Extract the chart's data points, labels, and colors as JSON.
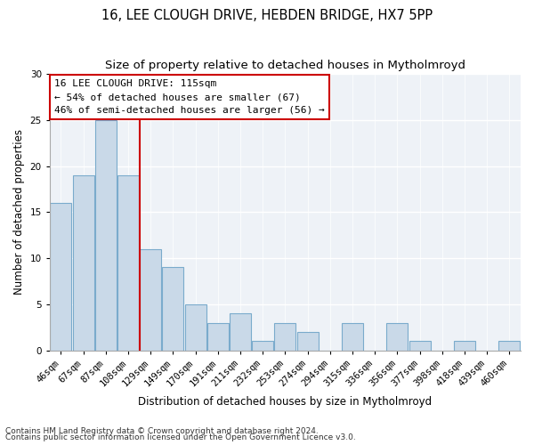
{
  "title": "16, LEE CLOUGH DRIVE, HEBDEN BRIDGE, HX7 5PP",
  "subtitle": "Size of property relative to detached houses in Mytholmroyd",
  "xlabel": "Distribution of detached houses by size in Mytholmroyd",
  "ylabel": "Number of detached properties",
  "footnote1": "Contains HM Land Registry data © Crown copyright and database right 2024.",
  "footnote2": "Contains public sector information licensed under the Open Government Licence v3.0.",
  "bin_labels": [
    "46sqm",
    "67sqm",
    "87sqm",
    "108sqm",
    "129sqm",
    "149sqm",
    "170sqm",
    "191sqm",
    "211sqm",
    "232sqm",
    "253sqm",
    "274sqm",
    "294sqm",
    "315sqm",
    "336sqm",
    "356sqm",
    "377sqm",
    "398sqm",
    "418sqm",
    "439sqm",
    "460sqm"
  ],
  "counts": [
    16,
    19,
    25,
    19,
    11,
    9,
    5,
    3,
    4,
    1,
    3,
    2,
    0,
    3,
    0,
    3,
    1,
    0,
    1,
    0,
    1
  ],
  "bar_color": "#c9d9e8",
  "bar_edge_color": "#7aabcc",
  "marker_bin_index": 3,
  "marker_color": "#cc0000",
  "ylim": [
    0,
    30
  ],
  "yticks": [
    0,
    5,
    10,
    15,
    20,
    25,
    30
  ],
  "annotation_title": "16 LEE CLOUGH DRIVE: 115sqm",
  "annotation_line1": "← 54% of detached houses are smaller (67)",
  "annotation_line2": "46% of semi-detached houses are larger (56) →",
  "annotation_box_color": "#cc0000",
  "background_color": "#eef2f7",
  "title_fontsize": 10.5,
  "subtitle_fontsize": 9.5,
  "axis_label_fontsize": 8.5,
  "tick_fontsize": 7.5,
  "annotation_fontsize": 8,
  "footnote_fontsize": 6.5
}
